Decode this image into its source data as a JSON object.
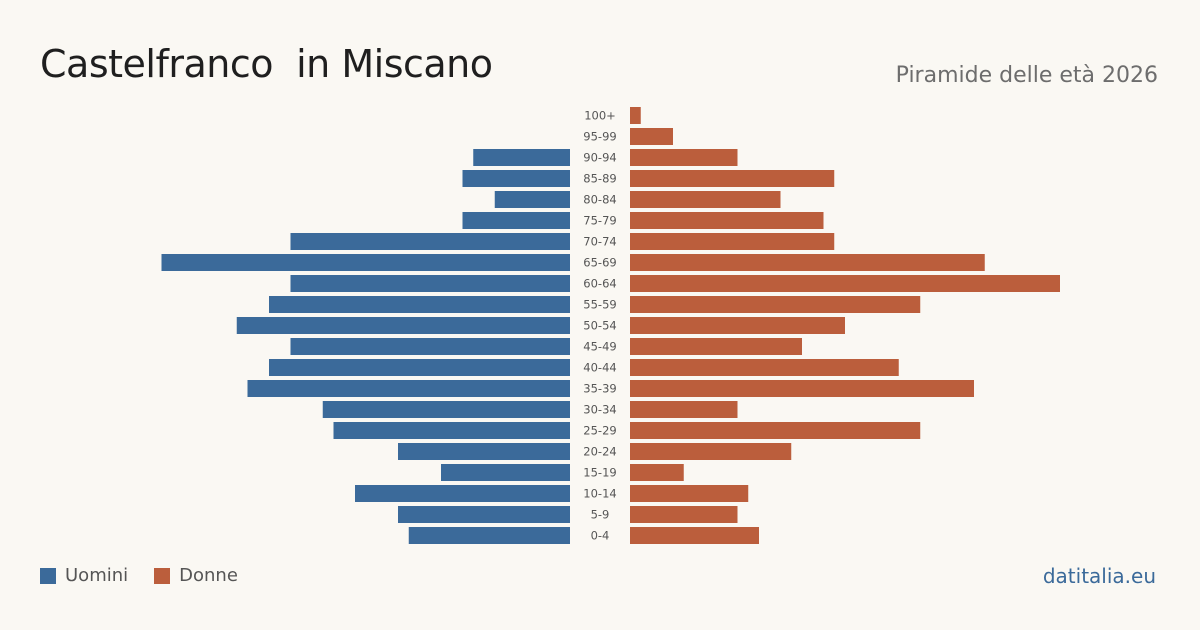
{
  "header": {
    "title": "Castelfranco  in Miscano",
    "subtitle": "Piramide delle età 2026"
  },
  "legend": {
    "men_label": "Uomini",
    "women_label": "Donne"
  },
  "footer": {
    "site": "datitalia.eu"
  },
  "colors": {
    "men": "#3b6a9a",
    "women": "#bb5e3c",
    "background": "#faf8f3"
  },
  "chart_data": {
    "type": "bar",
    "orientation": "horizontal-pyramid",
    "categories": [
      "100+",
      "95-99",
      "90-94",
      "85-89",
      "80-84",
      "75-79",
      "70-74",
      "65-69",
      "60-64",
      "55-59",
      "50-54",
      "45-49",
      "40-44",
      "35-39",
      "30-34",
      "25-29",
      "20-24",
      "15-19",
      "10-14",
      "5-9",
      "0-4"
    ],
    "series": [
      {
        "name": "Uomini",
        "values": [
          0,
          0,
          9,
          10,
          7,
          10,
          26,
          38,
          26,
          28,
          31,
          26,
          28,
          30,
          23,
          22,
          16,
          12,
          20,
          16,
          15
        ]
      },
      {
        "name": "Donne",
        "values": [
          1,
          4,
          10,
          19,
          14,
          18,
          19,
          33,
          40,
          27,
          20,
          16,
          25,
          32,
          10,
          27,
          15,
          5,
          11,
          10,
          12
        ]
      }
    ],
    "max_value": 40,
    "legend": "bottom-left",
    "grid": false
  }
}
